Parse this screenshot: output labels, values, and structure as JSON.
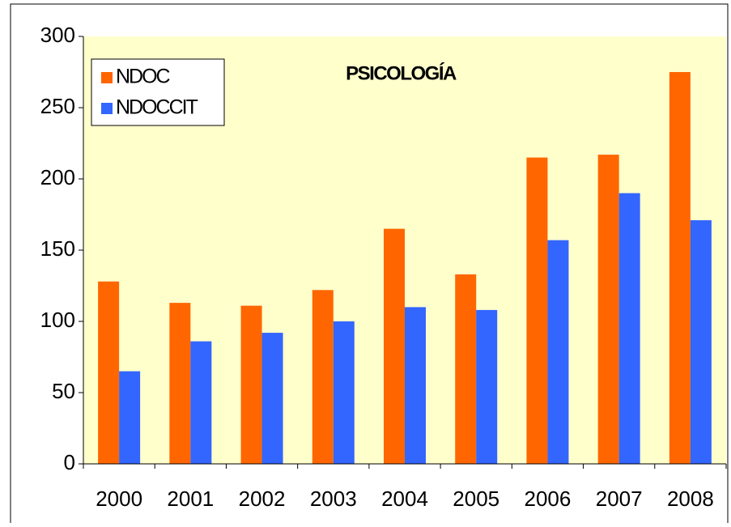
{
  "chart_data": {
    "type": "bar",
    "title": "PSICOLOGÍA",
    "categories": [
      "2000",
      "2001",
      "2002",
      "2003",
      "2004",
      "2005",
      "2006",
      "2007",
      "2008"
    ],
    "series": [
      {
        "name": "NDOC",
        "color": "#ff6600",
        "values": [
          128,
          113,
          111,
          122,
          165,
          133,
          215,
          217,
          275
        ]
      },
      {
        "name": "NDOCCIT",
        "color": "#3366ff",
        "values": [
          65,
          86,
          92,
          100,
          110,
          108,
          157,
          190,
          171
        ]
      }
    ],
    "ylim": [
      0,
      300
    ],
    "yticks": [
      0,
      50,
      100,
      150,
      200,
      250,
      300
    ],
    "grid": false,
    "legend": "upper left"
  }
}
